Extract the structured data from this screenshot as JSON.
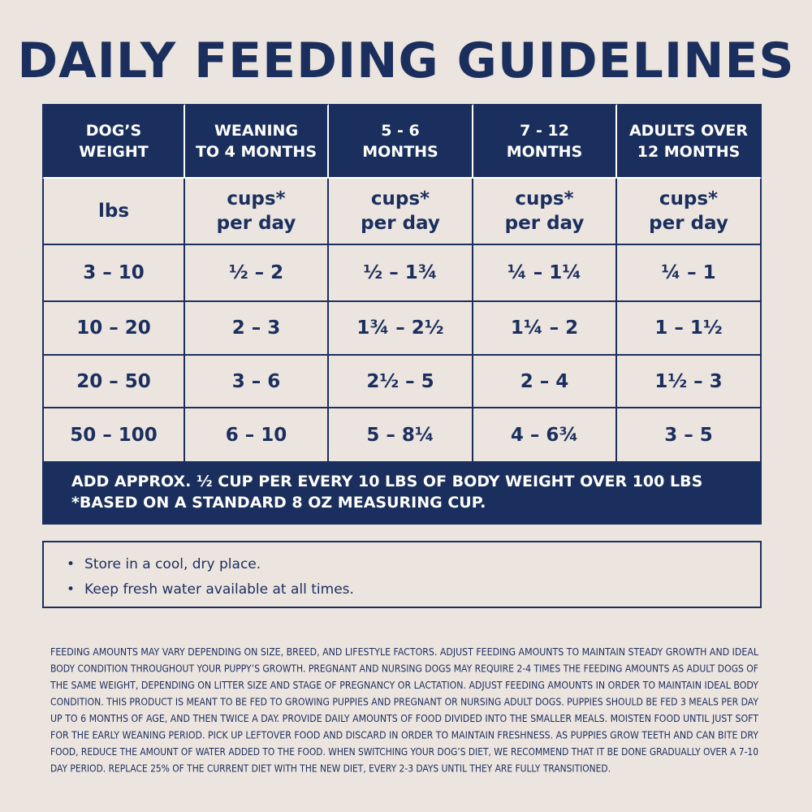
{
  "title": "DAILY FEEDING GUIDELINES",
  "table": {
    "header": [
      [
        "DOG’S",
        "WEIGHT"
      ],
      [
        "WEANING",
        "TO 4 MONTHS"
      ],
      [
        "5 - 6",
        "MONTHS"
      ],
      [
        "7 - 12",
        "MONTHS"
      ],
      [
        "ADULTS OVER",
        "12 MONTHS"
      ]
    ],
    "units": [
      [
        "lbs"
      ],
      [
        "cups*",
        "per day"
      ],
      [
        "cups*",
        "per day"
      ],
      [
        "cups*",
        "per day"
      ],
      [
        "cups*",
        "per day"
      ]
    ],
    "rows": [
      [
        "3 – 10",
        "½ – 2",
        "½ – 1¾",
        "¼ – 1¼",
        "¼ – 1"
      ],
      [
        "10 – 20",
        "2 – 3",
        "1¾ – 2½",
        "1¼ – 2",
        "1 – 1½"
      ],
      [
        "20 – 50",
        "3 – 6",
        "2½ – 5",
        "2 – 4",
        "1½ – 3"
      ],
      [
        "50 – 100",
        "6 – 10",
        "5 – 8¼",
        "4 – 6¾",
        "3 – 5"
      ]
    ],
    "footer": [
      "ADD APPROX. ½ CUP PER EVERY 10 LBS OF BODY WEIGHT OVER 100 LBS",
      "*BASED ON A STANDARD 8 OZ MEASURING CUP."
    ]
  },
  "tips": [
    "Store in a cool, dry place.",
    "Keep fresh water available at all times."
  ],
  "fine_print": [
    "FEEDING AMOUNTS MAY VARY DEPENDING ON SIZE, BREED, AND LIFESTYLE FACTORS. ADJUST FEEDING AMOUNTS TO MAINTAIN STEADY GROWTH AND IDEAL",
    "BODY CONDITION THROUGHOUT YOUR PUPPY’S GROWTH. PREGNANT AND NURSING DOGS MAY REQUIRE 2-4 TIMES THE FEEDING AMOUNTS AS ADULT DOGS OF",
    "THE SAME WEIGHT, DEPENDING ON LITTER SIZE AND STAGE OF PREGNANCY OR LACTATION. ADJUST FEEDING AMOUNTS IN ORDER TO MAINTAIN IDEAL BODY",
    "CONDITION. THIS PRODUCT IS MEANT TO BE FED TO GROWING PUPPIES AND PREGNANT OR NURSING ADULT DOGS. PUPPIES SHOULD BE FED 3 MEALS PER DAY",
    "UP TO 6 MONTHS OF AGE, AND THEN TWICE A DAY. PROVIDE DAILY AMOUNTS OF FOOD DIVIDED INTO THE SMALLER MEALS. MOISTEN FOOD UNTIL JUST SOFT",
    "FOR THE EARLY WEANING PERIOD. PICK UP LEFTOVER FOOD AND DISCARD IN ORDER TO MAINTAIN FRESHNESS. AS PUPPIES GROW TEETH AND CAN BITE DRY",
    "FOOD, REDUCE THE AMOUNT OF WATER ADDED TO THE FOOD. WHEN SWITCHING YOUR DOG’S DIET, WE RECOMMEND THAT IT BE DONE GRADUALLY OVER A 7-10",
    "DAY PERIOD. REPLACE 25% OF THE CURRENT DIET WITH THE NEW DIET, EVERY 2-3 DAYS UNTIL THEY ARE FULLY TRANSITIONED."
  ]
}
